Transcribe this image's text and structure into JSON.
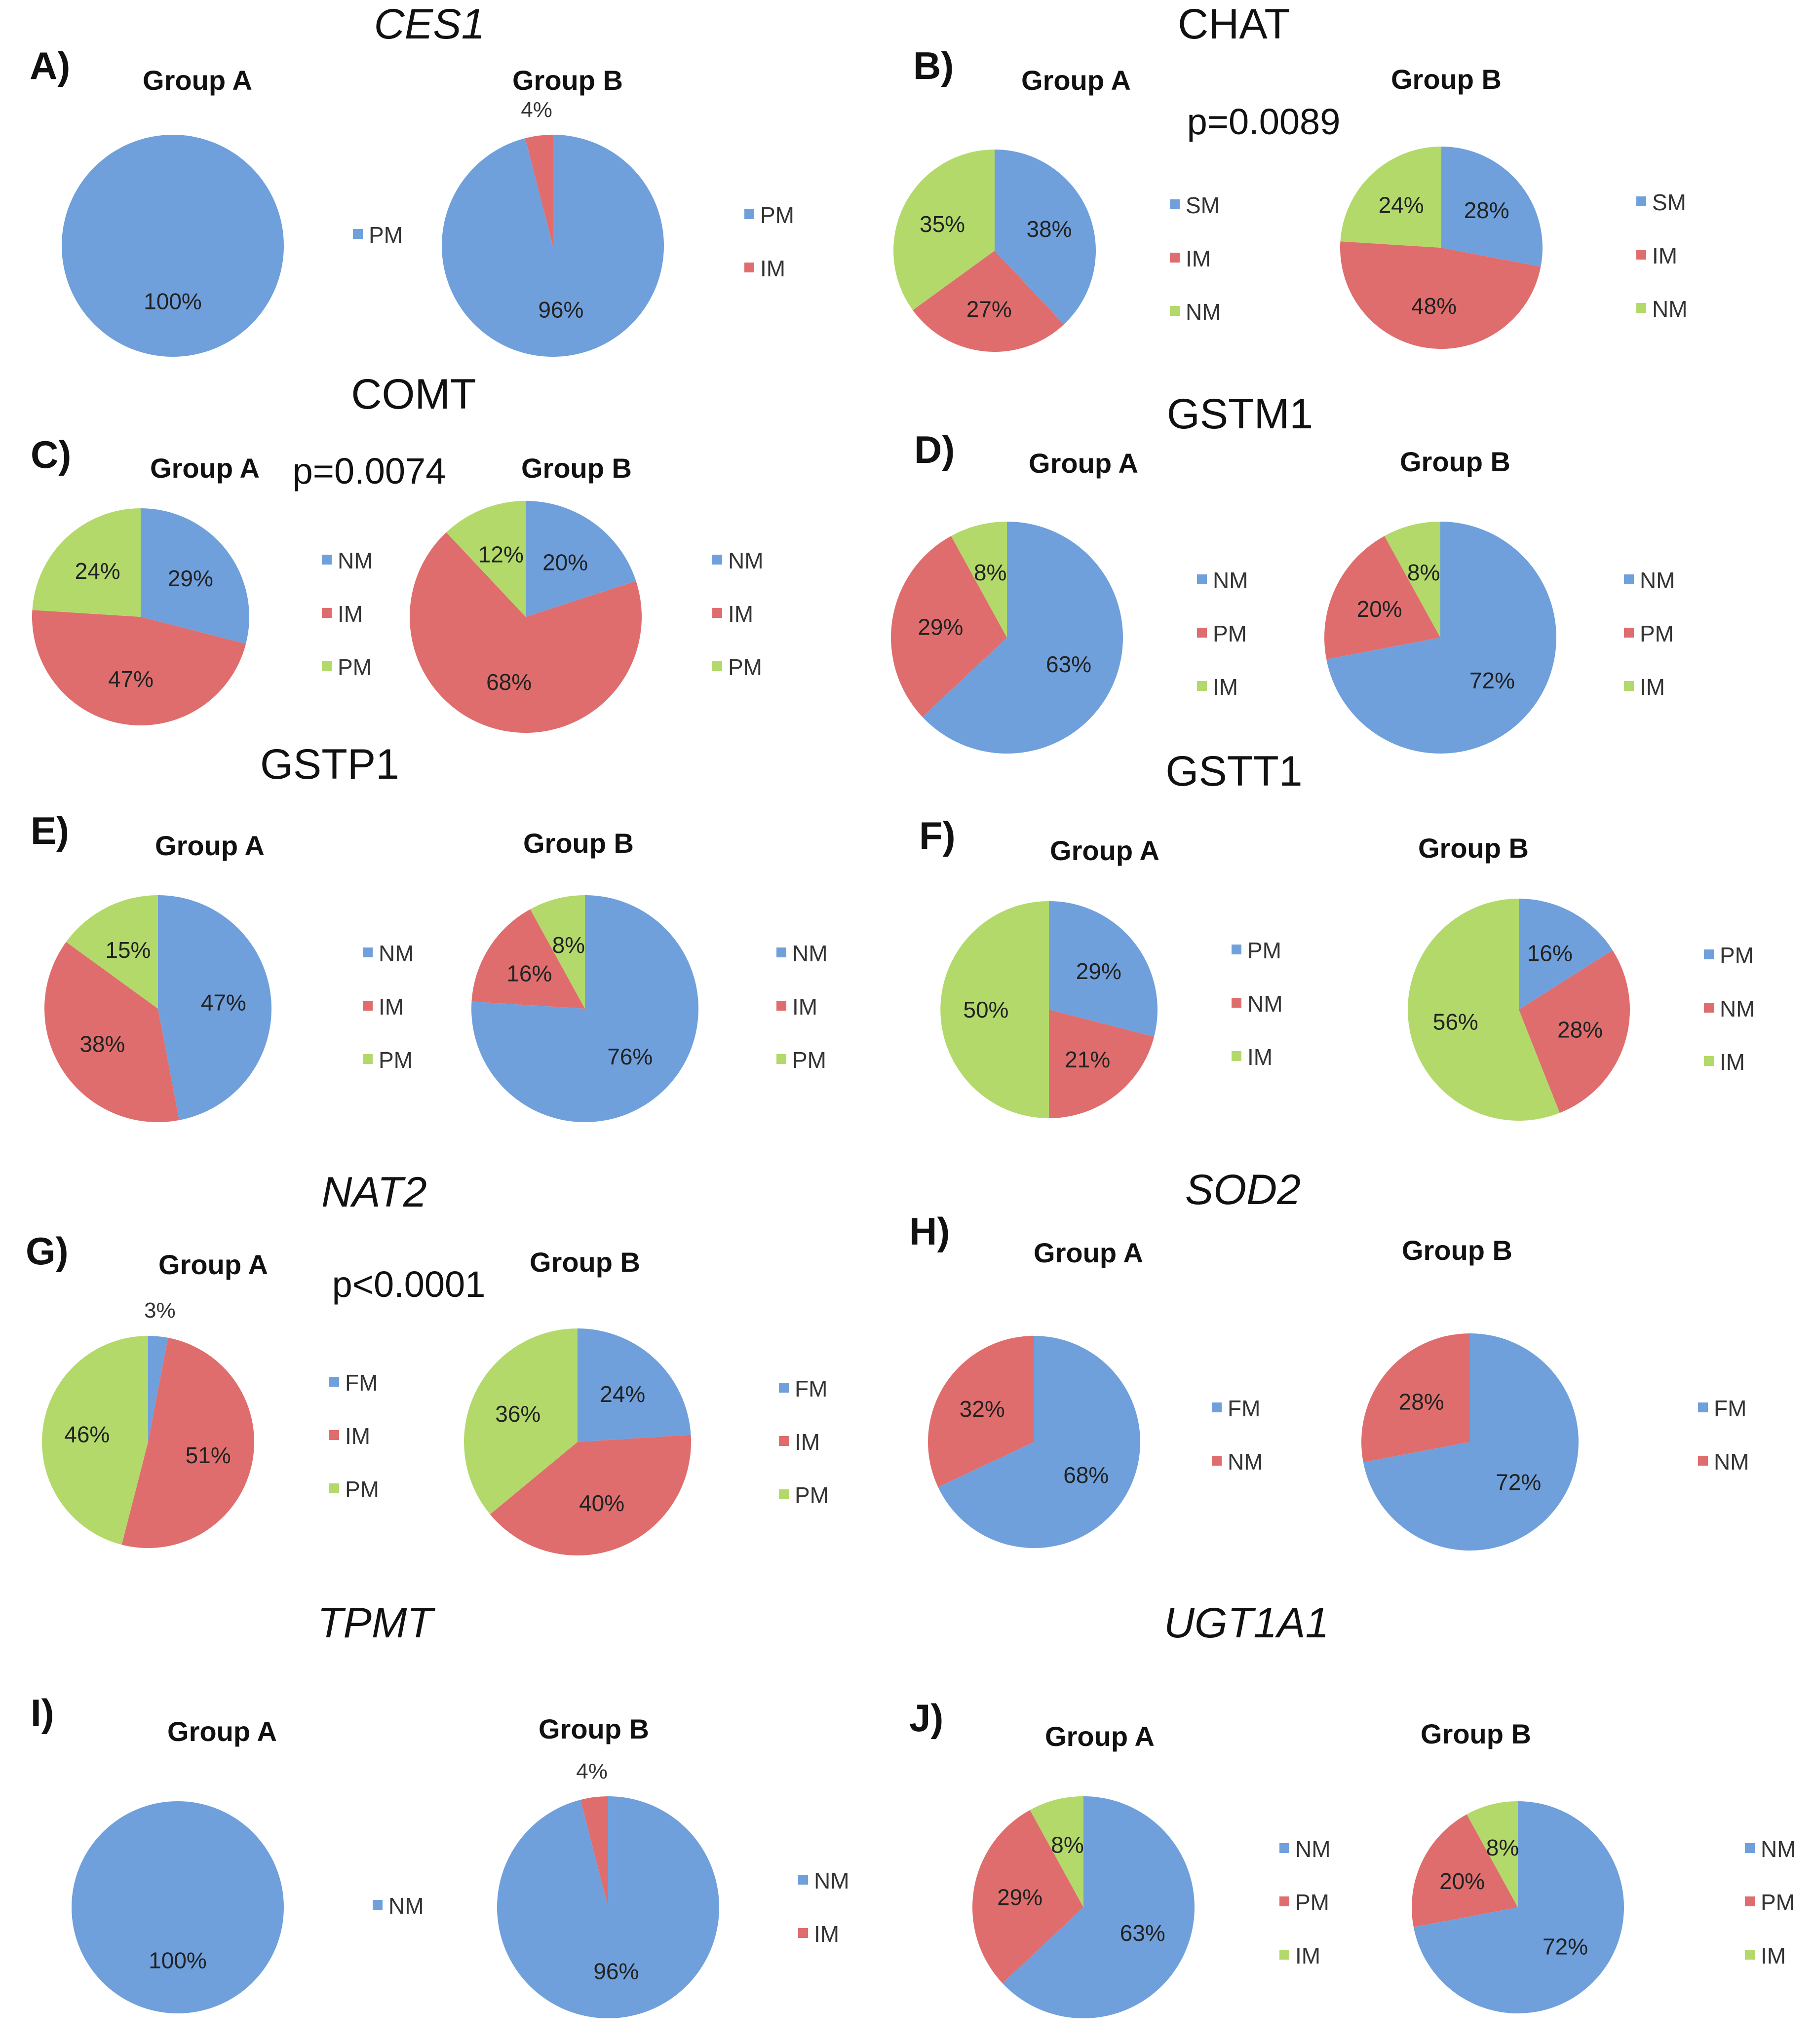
{
  "colors": {
    "blue": "#6fa0dc",
    "red": "#e06d6d",
    "green": "#b3d96b"
  },
  "chart_data": [
    {
      "panel": "A)",
      "gene": "CES1",
      "italic": true,
      "pvalue": null,
      "charts": [
        {
          "type": "pie",
          "group": "Group A",
          "slices": [
            {
              "label": "PM",
              "value": 100,
              "text": "100%",
              "color": "blue"
            }
          ],
          "legend": [
            {
              "label": "PM",
              "color": "blue"
            }
          ]
        },
        {
          "type": "pie",
          "group": "Group B",
          "slices": [
            {
              "label": "PM",
              "value": 96,
              "text": "96%",
              "color": "blue"
            },
            {
              "label": "IM",
              "value": 4,
              "text": "4%",
              "color": "red"
            }
          ],
          "legend": [
            {
              "label": "PM",
              "color": "blue"
            },
            {
              "label": "IM",
              "color": "red"
            }
          ]
        }
      ]
    },
    {
      "panel": "B)",
      "gene": "CHAT",
      "italic": false,
      "pvalue": "p=0.0089",
      "charts": [
        {
          "type": "pie",
          "group": "Group A",
          "slices": [
            {
              "label": "SM",
              "value": 38,
              "text": "38%",
              "color": "blue"
            },
            {
              "label": "IM",
              "value": 27,
              "text": "27%",
              "color": "red"
            },
            {
              "label": "NM",
              "value": 35,
              "text": "35%",
              "color": "green"
            }
          ],
          "legend": [
            {
              "label": "SM",
              "color": "blue"
            },
            {
              "label": "IM",
              "color": "red"
            },
            {
              "label": "NM",
              "color": "green"
            }
          ]
        },
        {
          "type": "pie",
          "group": "Group B",
          "slices": [
            {
              "label": "SM",
              "value": 28,
              "text": "28%",
              "color": "blue"
            },
            {
              "label": "IM",
              "value": 48,
              "text": "48%",
              "color": "red"
            },
            {
              "label": "NM",
              "value": 24,
              "text": "24%",
              "color": "green"
            }
          ],
          "legend": [
            {
              "label": "SM",
              "color": "blue"
            },
            {
              "label": "IM",
              "color": "red"
            },
            {
              "label": "NM",
              "color": "green"
            }
          ]
        }
      ]
    },
    {
      "panel": "C)",
      "gene": "COMT",
      "italic": false,
      "pvalue": "p=0.0074",
      "charts": [
        {
          "type": "pie",
          "group": "Group A",
          "slices": [
            {
              "label": "NM",
              "value": 29,
              "text": "29%",
              "color": "blue"
            },
            {
              "label": "IM",
              "value": 47,
              "text": "47%",
              "color": "red"
            },
            {
              "label": "PM",
              "value": 24,
              "text": "24%",
              "color": "green"
            }
          ],
          "legend": [
            {
              "label": "NM",
              "color": "blue"
            },
            {
              "label": "IM",
              "color": "red"
            },
            {
              "label": "PM",
              "color": "green"
            }
          ]
        },
        {
          "type": "pie",
          "group": "Group B",
          "slices": [
            {
              "label": "NM",
              "value": 20,
              "text": "20%",
              "color": "blue"
            },
            {
              "label": "IM",
              "value": 68,
              "text": "68%",
              "color": "red"
            },
            {
              "label": "PM",
              "value": 12,
              "text": "12%",
              "color": "green"
            }
          ],
          "legend": [
            {
              "label": "NM",
              "color": "blue"
            },
            {
              "label": "IM",
              "color": "red"
            },
            {
              "label": "PM",
              "color": "green"
            }
          ]
        }
      ]
    },
    {
      "panel": "D)",
      "gene": "GSTM1",
      "italic": false,
      "pvalue": null,
      "charts": [
        {
          "type": "pie",
          "group": "Group A",
          "slices": [
            {
              "label": "NM",
              "value": 63,
              "text": "63%",
              "color": "blue"
            },
            {
              "label": "PM",
              "value": 29,
              "text": "29%",
              "color": "red"
            },
            {
              "label": "IM",
              "value": 8,
              "text": "8%",
              "color": "green"
            }
          ],
          "legend": [
            {
              "label": "NM",
              "color": "blue"
            },
            {
              "label": "PM",
              "color": "red"
            },
            {
              "label": "IM",
              "color": "green"
            }
          ]
        },
        {
          "type": "pie",
          "group": "Group B",
          "slices": [
            {
              "label": "NM",
              "value": 72,
              "text": "72%",
              "color": "blue"
            },
            {
              "label": "PM",
              "value": 20,
              "text": "20%",
              "color": "red"
            },
            {
              "label": "IM",
              "value": 8,
              "text": "8%",
              "color": "green"
            }
          ],
          "legend": [
            {
              "label": "NM",
              "color": "blue"
            },
            {
              "label": "PM",
              "color": "red"
            },
            {
              "label": "IM",
              "color": "green"
            }
          ]
        }
      ]
    },
    {
      "panel": "E)",
      "gene": "GSTP1",
      "italic": false,
      "pvalue": null,
      "charts": [
        {
          "type": "pie",
          "group": "Group A",
          "slices": [
            {
              "label": "NM",
              "value": 47,
              "text": "47%",
              "color": "blue"
            },
            {
              "label": "IM",
              "value": 38,
              "text": "38%",
              "color": "red"
            },
            {
              "label": "PM",
              "value": 15,
              "text": "15%",
              "color": "green"
            }
          ],
          "legend": [
            {
              "label": "NM",
              "color": "blue"
            },
            {
              "label": "IM",
              "color": "red"
            },
            {
              "label": "PM",
              "color": "green"
            }
          ]
        },
        {
          "type": "pie",
          "group": "Group B",
          "slices": [
            {
              "label": "NM",
              "value": 76,
              "text": "76%",
              "color": "blue"
            },
            {
              "label": "IM",
              "value": 16,
              "text": "16%",
              "color": "red"
            },
            {
              "label": "PM",
              "value": 8,
              "text": "8%",
              "color": "green"
            }
          ],
          "legend": [
            {
              "label": "NM",
              "color": "blue"
            },
            {
              "label": "IM",
              "color": "red"
            },
            {
              "label": "PM",
              "color": "green"
            }
          ]
        }
      ]
    },
    {
      "panel": "F)",
      "gene": "GSTT1",
      "italic": false,
      "pvalue": null,
      "charts": [
        {
          "type": "pie",
          "group": "Group A",
          "slices": [
            {
              "label": "PM",
              "value": 29,
              "text": "29%",
              "color": "blue"
            },
            {
              "label": "NM",
              "value": 21,
              "text": "21%",
              "color": "red"
            },
            {
              "label": "IM",
              "value": 50,
              "text": "50%",
              "color": "green"
            }
          ],
          "legend": [
            {
              "label": "PM",
              "color": "blue"
            },
            {
              "label": "NM",
              "color": "red"
            },
            {
              "label": "IM",
              "color": "green"
            }
          ]
        },
        {
          "type": "pie",
          "group": "Group B",
          "slices": [
            {
              "label": "PM",
              "value": 16,
              "text": "16%",
              "color": "blue"
            },
            {
              "label": "NM",
              "value": 28,
              "text": "28%",
              "color": "red"
            },
            {
              "label": "IM",
              "value": 56,
              "text": "56%",
              "color": "green"
            }
          ],
          "legend": [
            {
              "label": "PM",
              "color": "blue"
            },
            {
              "label": "NM",
              "color": "red"
            },
            {
              "label": "IM",
              "color": "green"
            }
          ]
        }
      ]
    },
    {
      "panel": "G)",
      "gene": "NAT2",
      "italic": true,
      "pvalue": "p<0.0001",
      "charts": [
        {
          "type": "pie",
          "group": "Group A",
          "slices": [
            {
              "label": "FM",
              "value": 3,
              "text": "3%",
              "color": "blue"
            },
            {
              "label": "IM",
              "value": 51,
              "text": "51%",
              "color": "red"
            },
            {
              "label": "PM",
              "value": 46,
              "text": "46%",
              "color": "green"
            }
          ],
          "legend": [
            {
              "label": "FM",
              "color": "blue"
            },
            {
              "label": "IM",
              "color": "red"
            },
            {
              "label": "PM",
              "color": "green"
            }
          ]
        },
        {
          "type": "pie",
          "group": "Group B",
          "slices": [
            {
              "label": "FM",
              "value": 24,
              "text": "24%",
              "color": "blue"
            },
            {
              "label": "IM",
              "value": 40,
              "text": "40%",
              "color": "red"
            },
            {
              "label": "PM",
              "value": 36,
              "text": "36%",
              "color": "green"
            }
          ],
          "legend": [
            {
              "label": "FM",
              "color": "blue"
            },
            {
              "label": "IM",
              "color": "red"
            },
            {
              "label": "PM",
              "color": "green"
            }
          ]
        }
      ]
    },
    {
      "panel": "H)",
      "gene": "SOD2",
      "italic": true,
      "pvalue": null,
      "charts": [
        {
          "type": "pie",
          "group": "Group A",
          "slices": [
            {
              "label": "FM",
              "value": 68,
              "text": "68%",
              "color": "blue"
            },
            {
              "label": "NM",
              "value": 32,
              "text": "32%",
              "color": "red"
            }
          ],
          "legend": [
            {
              "label": "FM",
              "color": "blue"
            },
            {
              "label": "NM",
              "color": "red"
            }
          ]
        },
        {
          "type": "pie",
          "group": "Group B",
          "slices": [
            {
              "label": "FM",
              "value": 72,
              "text": "72%",
              "color": "blue"
            },
            {
              "label": "NM",
              "value": 28,
              "text": "28%",
              "color": "red"
            }
          ],
          "legend": [
            {
              "label": "FM",
              "color": "blue"
            },
            {
              "label": "NM",
              "color": "red"
            }
          ]
        }
      ]
    },
    {
      "panel": "I)",
      "gene": "TPMT",
      "italic": true,
      "pvalue": null,
      "charts": [
        {
          "type": "pie",
          "group": "Group A",
          "slices": [
            {
              "label": "NM",
              "value": 100,
              "text": "100%",
              "color": "blue"
            }
          ],
          "legend": [
            {
              "label": "NM",
              "color": "blue"
            }
          ]
        },
        {
          "type": "pie",
          "group": "Group B",
          "slices": [
            {
              "label": "NM",
              "value": 96,
              "text": "96%",
              "color": "blue"
            },
            {
              "label": "IM",
              "value": 4,
              "text": "4%",
              "color": "red"
            }
          ],
          "legend": [
            {
              "label": "NM",
              "color": "blue"
            },
            {
              "label": "IM",
              "color": "red"
            }
          ]
        }
      ]
    },
    {
      "panel": "J)",
      "gene": "UGT1A1",
      "italic": true,
      "pvalue": null,
      "charts": [
        {
          "type": "pie",
          "group": "Group A",
          "slices": [
            {
              "label": "NM",
              "value": 63,
              "text": "63%",
              "color": "blue"
            },
            {
              "label": "PM",
              "value": 29,
              "text": "29%",
              "color": "red"
            },
            {
              "label": "IM",
              "value": 8,
              "text": "8%",
              "color": "green"
            }
          ],
          "legend": [
            {
              "label": "NM",
              "color": "blue"
            },
            {
              "label": "PM",
              "color": "red"
            },
            {
              "label": "IM",
              "color": "green"
            }
          ]
        },
        {
          "type": "pie",
          "group": "Group B",
          "slices": [
            {
              "label": "NM",
              "value": 72,
              "text": "72%",
              "color": "blue"
            },
            {
              "label": "PM",
              "value": 20,
              "text": "20%",
              "color": "red"
            },
            {
              "label": "IM",
              "value": 8,
              "text": "8%",
              "color": "green"
            }
          ],
          "legend": [
            {
              "label": "NM",
              "color": "blue"
            },
            {
              "label": "PM",
              "color": "red"
            },
            {
              "label": "IM",
              "color": "green"
            }
          ]
        }
      ]
    }
  ]
}
